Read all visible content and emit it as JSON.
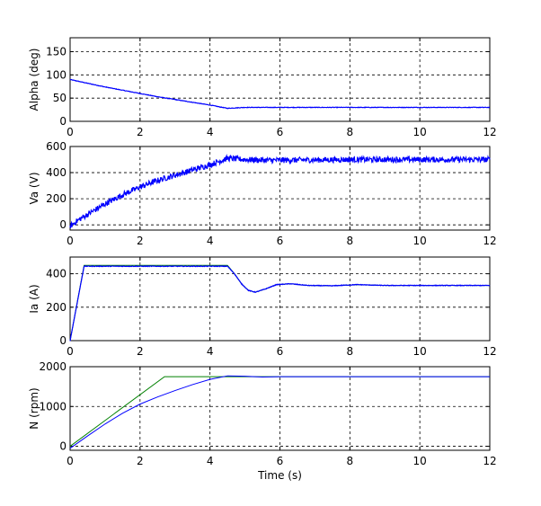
{
  "chart_data": [
    {
      "type": "line",
      "ylabel": "Alpha (deg)",
      "xlabel": "",
      "xlim": [
        0,
        12
      ],
      "ylim": [
        0,
        180
      ],
      "xticks": [
        "0",
        "2",
        "4",
        "6",
        "8",
        "10",
        "12"
      ],
      "yticks": [
        "0",
        "50",
        "100",
        "150"
      ],
      "grid": true,
      "series": [
        {
          "color": "#0000ff",
          "noise": 0.6,
          "x": [
            0,
            0.5,
            1,
            1.5,
            2,
            2.5,
            3,
            3.5,
            4,
            4.5,
            5,
            6,
            8,
            10,
            12
          ],
          "y": [
            90,
            82,
            74,
            67,
            60,
            53,
            47,
            41,
            35,
            28,
            30,
            30,
            30,
            30,
            30
          ]
        }
      ]
    },
    {
      "type": "line",
      "ylabel": "Va (V)",
      "xlabel": "",
      "xlim": [
        0,
        12
      ],
      "ylim": [
        -40,
        600
      ],
      "xticks": [
        "0",
        "2",
        "4",
        "6",
        "8",
        "10",
        "12"
      ],
      "yticks": [
        "0",
        "200",
        "400",
        "600"
      ],
      "grid": true,
      "series": [
        {
          "color": "#0000ff",
          "noise": 22,
          "x": [
            0,
            0.25,
            0.5,
            1,
            1.5,
            2,
            2.5,
            3,
            3.5,
            4,
            4.5,
            5,
            5.5,
            6,
            8,
            10,
            12
          ],
          "y": [
            -10,
            40,
            80,
            160,
            230,
            290,
            340,
            380,
            420,
            460,
            510,
            500,
            495,
            495,
            500,
            500,
            500
          ]
        }
      ]
    },
    {
      "type": "line",
      "ylabel": "Ia (A)",
      "xlabel": "",
      "xlim": [
        0,
        12
      ],
      "ylim": [
        0,
        500
      ],
      "xticks": [
        "0",
        "2",
        "4",
        "6",
        "8",
        "10",
        "12"
      ],
      "yticks": [
        "0",
        "200",
        "400"
      ],
      "grid": true,
      "series": [
        {
          "color": "#008000",
          "noise": 0,
          "x": [
            0,
            0.4,
            4.5,
            4.7,
            4.9,
            5.1,
            5.3,
            5.6,
            5.9,
            6.3,
            6.8,
            7.5,
            8.2,
            9,
            12
          ],
          "y": [
            0,
            450,
            450,
            400,
            340,
            300,
            290,
            310,
            335,
            340,
            330,
            328,
            335,
            330,
            330
          ]
        },
        {
          "color": "#0000ff",
          "noise": 2,
          "x": [
            0,
            0.4,
            4.5,
            4.7,
            4.9,
            5.1,
            5.3,
            5.6,
            5.9,
            6.3,
            6.8,
            7.5,
            8.2,
            9,
            12
          ],
          "y": [
            0,
            445,
            445,
            400,
            340,
            300,
            290,
            310,
            335,
            340,
            330,
            328,
            335,
            330,
            330
          ]
        }
      ]
    },
    {
      "type": "line",
      "ylabel": "N (rpm)",
      "xlabel": "Time (s)",
      "xlim": [
        0,
        12
      ],
      "ylim": [
        -100,
        2000
      ],
      "xticks": [
        "0",
        "2",
        "4",
        "6",
        "8",
        "10",
        "12"
      ],
      "yticks": [
        "0",
        "1000",
        "2000"
      ],
      "grid": true,
      "series": [
        {
          "color": "#008000",
          "noise": 0,
          "x": [
            0,
            2.7,
            12
          ],
          "y": [
            0,
            1750,
            1750
          ]
        },
        {
          "color": "#0000ff",
          "noise": 0,
          "x": [
            0,
            0.5,
            1,
            1.5,
            2,
            2.5,
            3,
            3.5,
            4,
            4.5,
            5,
            5.5,
            6,
            12
          ],
          "y": [
            -50,
            260,
            560,
            830,
            1060,
            1240,
            1400,
            1550,
            1680,
            1770,
            1760,
            1740,
            1750,
            1750
          ]
        }
      ]
    }
  ]
}
